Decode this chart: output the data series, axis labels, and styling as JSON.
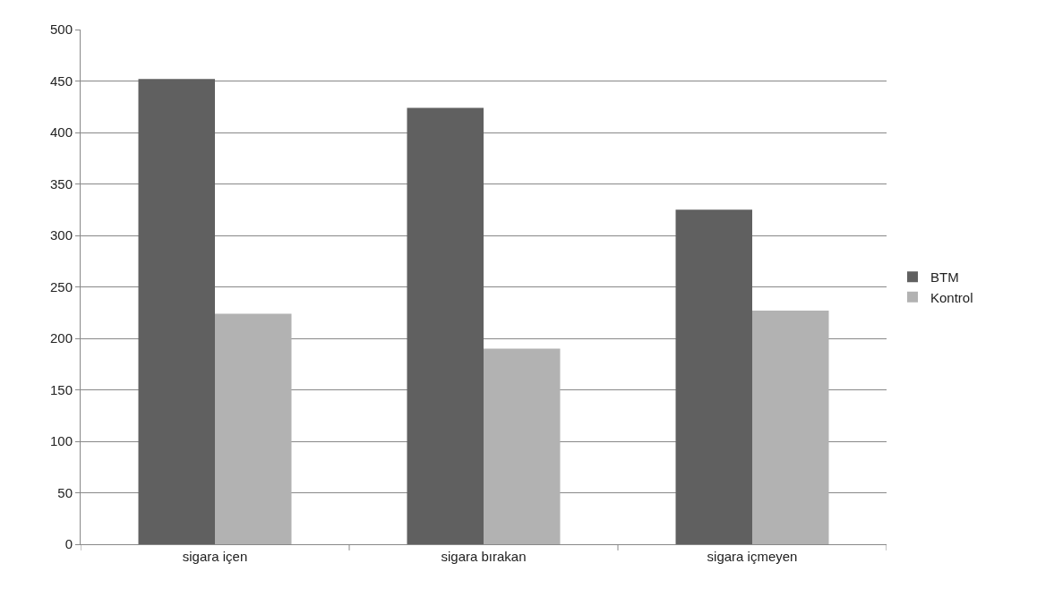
{
  "chart_data": {
    "type": "bar",
    "categories": [
      "sigara içen",
      "sigara bırakan",
      "sigara içmeyen"
    ],
    "series": [
      {
        "name": "BTM",
        "color": "#606060",
        "values": [
          452,
          424,
          325
        ]
      },
      {
        "name": "Kontrol",
        "color": "#b2b2b2",
        "values": [
          224,
          190,
          227
        ]
      }
    ],
    "ylim": [
      0,
      500
    ],
    "yticks": [
      0,
      50,
      100,
      150,
      200,
      250,
      300,
      350,
      400,
      450,
      500
    ],
    "grid": "y",
    "legend": "right"
  }
}
